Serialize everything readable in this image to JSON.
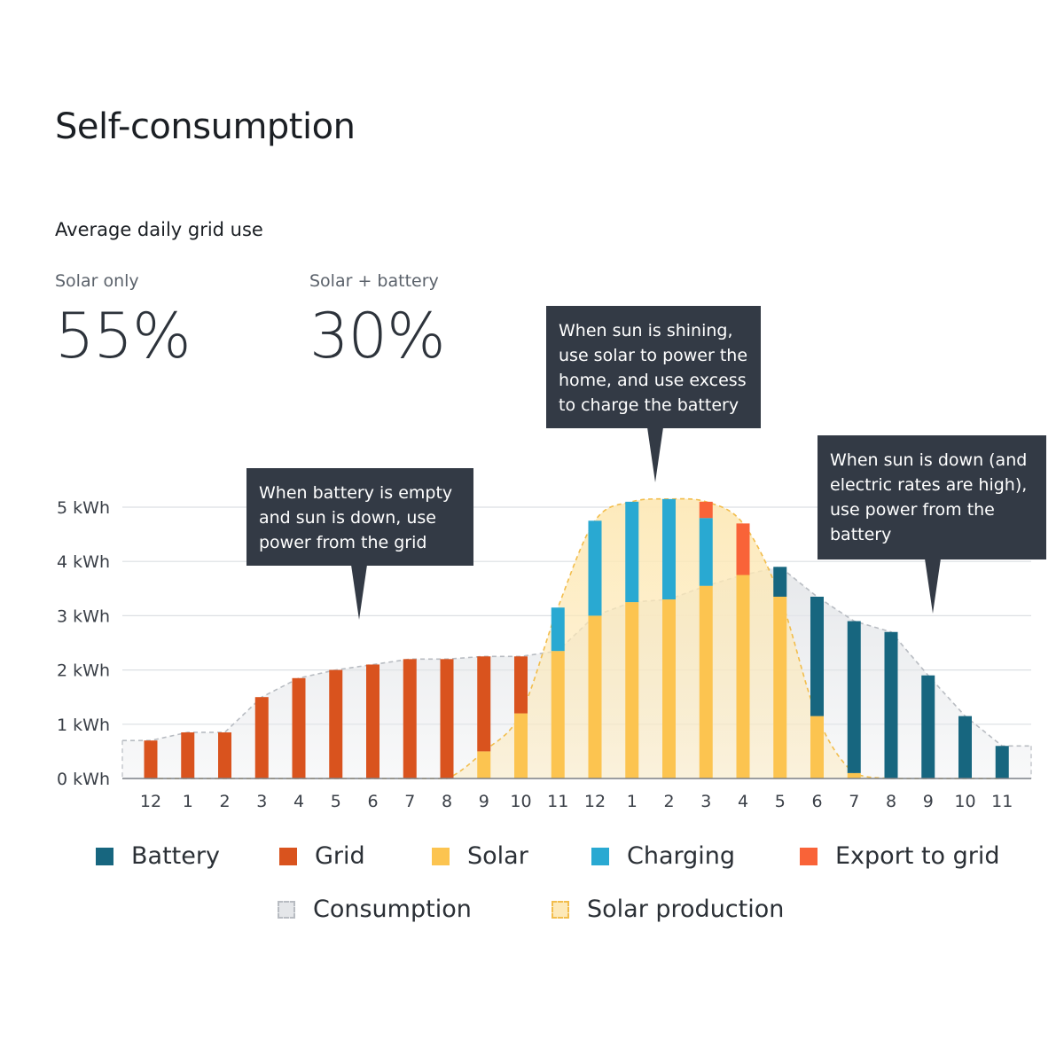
{
  "header": {
    "title": "Self-consumption",
    "subtitle": "Average daily grid use"
  },
  "stats": [
    {
      "label": "Solar only",
      "value": "55%"
    },
    {
      "label": "Solar + battery",
      "value": "30%"
    }
  ],
  "callouts": [
    {
      "text": "When battery is empty and sun is down, use power from the grid"
    },
    {
      "text": "When sun is shining, use solar to power the home, and use excess to charge the battery"
    },
    {
      "text": "When sun is down (and electric rates are high), use power from the battery"
    }
  ],
  "colors": {
    "battery": "#17667f",
    "grid": "#d9531e",
    "solar": "#fcc450",
    "charging": "#29a9d2",
    "export": "#f96338",
    "consumption_fill": "#e4e6e9",
    "consumption_line": "#b8bcc2",
    "solar_production_fill": "#fde9b8",
    "solar_production_line": "#f2bd4c",
    "gridline": "#dcdfe3",
    "axis": "#7a7f86"
  },
  "legend": [
    {
      "key": "battery",
      "label": "Battery",
      "icon": "square-swatch"
    },
    {
      "key": "grid",
      "label": "Grid",
      "icon": "square-swatch"
    },
    {
      "key": "solar",
      "label": "Solar",
      "icon": "square-swatch"
    },
    {
      "key": "charging",
      "label": "Charging",
      "icon": "square-swatch"
    },
    {
      "key": "export",
      "label": "Export to grid",
      "icon": "square-swatch"
    },
    {
      "key": "consumption",
      "label": "Consumption",
      "icon": "dashed-area-swatch"
    },
    {
      "key": "solar_production",
      "label": "Solar production",
      "icon": "dashed-area-swatch"
    }
  ],
  "chart_data": {
    "type": "bar",
    "stacked": true,
    "categories": [
      "12",
      "1",
      "2",
      "3",
      "4",
      "5",
      "6",
      "7",
      "8",
      "9",
      "10",
      "11",
      "12",
      "1",
      "2",
      "3",
      "4",
      "5",
      "6",
      "7",
      "8",
      "9",
      "10",
      "11"
    ],
    "y_ticks": [
      "0 kWh",
      "1 kWh",
      "2 kWh",
      "3 kWh",
      "4 kWh",
      "5 kWh"
    ],
    "ylim": [
      0,
      5.4
    ],
    "grid": true,
    "series": [
      {
        "name": "Solar",
        "key": "solar",
        "values": [
          0,
          0,
          0,
          0,
          0,
          0,
          0,
          0,
          0,
          0.5,
          1.2,
          2.35,
          3.0,
          3.25,
          3.3,
          3.55,
          3.75,
          3.35,
          1.15,
          0.1,
          0,
          0,
          0,
          0
        ]
      },
      {
        "name": "Grid",
        "key": "grid",
        "values": [
          0.7,
          0.85,
          0.85,
          1.5,
          1.85,
          2.0,
          2.1,
          2.2,
          2.2,
          1.75,
          1.05,
          0,
          0,
          0,
          0,
          0,
          0,
          0,
          0,
          0,
          0,
          0,
          0,
          0
        ]
      },
      {
        "name": "Battery",
        "key": "battery",
        "values": [
          0,
          0,
          0,
          0,
          0,
          0,
          0,
          0,
          0,
          0,
          0,
          0,
          0,
          0,
          0,
          0,
          0,
          0.55,
          2.2,
          2.8,
          2.7,
          1.9,
          1.15,
          0.6
        ]
      },
      {
        "name": "Charging",
        "key": "charging",
        "values": [
          0,
          0,
          0,
          0,
          0,
          0,
          0,
          0,
          0,
          0,
          0,
          0.8,
          1.75,
          1.85,
          1.85,
          1.25,
          0,
          0,
          0,
          0,
          0,
          0,
          0,
          0
        ]
      },
      {
        "name": "Export to grid",
        "key": "export",
        "values": [
          0,
          0,
          0,
          0,
          0,
          0,
          0,
          0,
          0,
          0,
          0,
          0,
          0,
          0,
          0,
          0.3,
          0.95,
          0,
          0,
          0,
          0,
          0,
          0,
          0
        ]
      }
    ],
    "consumption": [
      0.7,
      0.85,
      0.85,
      1.5,
      1.85,
      2.0,
      2.1,
      2.2,
      2.2,
      2.25,
      2.25,
      2.35,
      3.0,
      3.25,
      3.3,
      3.55,
      3.75,
      3.9,
      3.35,
      2.9,
      2.7,
      1.9,
      1.15,
      0.6
    ],
    "solar_production": [
      0,
      0,
      0,
      0,
      0,
      0,
      0,
      0,
      0,
      0.5,
      1.2,
      3.15,
      4.75,
      5.1,
      5.15,
      5.1,
      4.7,
      3.35,
      1.15,
      0.1,
      0,
      0,
      0,
      0
    ]
  }
}
